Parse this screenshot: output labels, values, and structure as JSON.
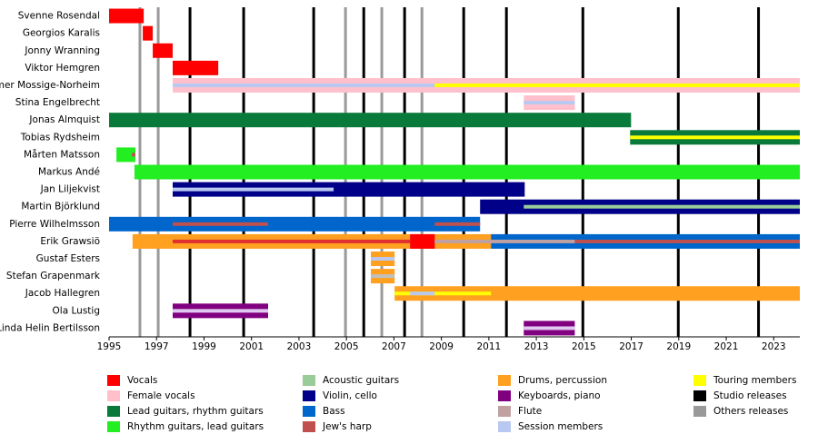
{
  "chart_data": {
    "type": "timeline",
    "xlim": [
      1995,
      2024.1
    ],
    "xticks": [
      1995,
      1997,
      1999,
      2001,
      2003,
      2005,
      2007,
      2009,
      2011,
      2013,
      2015,
      2017,
      2019,
      2021,
      2023
    ],
    "legend": [
      {
        "name": "Vocals",
        "color": "#ff0000"
      },
      {
        "name": "Female vocals",
        "color": "#ffc0cb"
      },
      {
        "name": "Lead guitars, rhythm guitars",
        "color": "#0a7a3a"
      },
      {
        "name": "Rhythm guitars, lead guitars",
        "color": "#22ee22"
      },
      {
        "name": "Acoustic guitars",
        "color": "#99cc99"
      },
      {
        "name": "Violin, cello",
        "color": "#000088"
      },
      {
        "name": "Bass",
        "color": "#0066cc"
      },
      {
        "name": "Jew's harp",
        "color": "#c0504d"
      },
      {
        "name": "Drums, percussion",
        "color": "#ffa020"
      },
      {
        "name": "Keyboards, piano",
        "color": "#800080"
      },
      {
        "name": "Flute",
        "color": "#c0a0a0"
      },
      {
        "name": "Session members",
        "color": "#b8c8f0"
      },
      {
        "name": "Touring members",
        "color": "#ffff00"
      },
      {
        "name": "Studio releases",
        "color": "#000000"
      },
      {
        "name": "Others releases",
        "color": "#999999"
      }
    ],
    "releases": [
      {
        "color": "#000000",
        "values": [
          1998.41,
          2000.67,
          2003.62,
          2005.73,
          2007.45,
          2009.94,
          2011.74,
          2014.96,
          2018.98,
          2022.36
        ]
      },
      {
        "color": "#999999",
        "values": [
          1996.3,
          1997.07,
          2004.96,
          2006.49,
          2008.18
        ]
      }
    ],
    "members": [
      {
        "name": "Svenne Rosendal",
        "bars": [
          {
            "start": 1995.0,
            "end": 1996.46,
            "color": "#ff0000",
            "size": "full"
          }
        ]
      },
      {
        "name": "Georgios Karalis",
        "bars": [
          {
            "start": 1996.42,
            "end": 1996.84,
            "color": "#ff0000",
            "size": "full"
          }
        ]
      },
      {
        "name": "Jonny Wranning",
        "bars": [
          {
            "start": 1996.84,
            "end": 1997.68,
            "color": "#ff0000",
            "size": "full"
          }
        ]
      },
      {
        "name": "Viktor Hemgren",
        "bars": [
          {
            "start": 1997.68,
            "end": 1999.6,
            "color": "#ff0000",
            "size": "full"
          }
        ]
      },
      {
        "name": "Ymer Mossige-Norheim",
        "bars": [
          {
            "start": 1997.68,
            "end": 2024.1,
            "color": "#ffc0cb",
            "size": "full"
          },
          {
            "start": 1997.68,
            "end": 2008.72,
            "color": "#b8c8f0",
            "size": "thin"
          },
          {
            "start": 2008.72,
            "end": 2024.1,
            "color": "#ffff00",
            "size": "thin"
          }
        ]
      },
      {
        "name": "Stina Engelbrecht",
        "bars": [
          {
            "start": 2012.47,
            "end": 2014.62,
            "color": "#ffc0cb",
            "size": "full"
          },
          {
            "start": 2012.47,
            "end": 2014.62,
            "color": "#b8c8f0",
            "size": "thin"
          }
        ]
      },
      {
        "name": "Jonas Almquist",
        "bars": [
          {
            "start": 1995.0,
            "end": 2016.99,
            "color": "#0a7a3a",
            "size": "full"
          }
        ]
      },
      {
        "name": "Tobias Rydsheim",
        "bars": [
          {
            "start": 2016.95,
            "end": 2024.1,
            "color": "#0a7a3a",
            "size": "full"
          },
          {
            "start": 2016.95,
            "end": 2024.1,
            "color": "#ffff00",
            "size": "thin"
          }
        ]
      },
      {
        "name": "Mårten Matsson",
        "bars": [
          {
            "start": 1995.31,
            "end": 1996.11,
            "color": "#22ee22",
            "size": "full"
          },
          {
            "start": 1995.96,
            "end": 1996.11,
            "color": "#c0504d",
            "size": "thin"
          }
        ]
      },
      {
        "name": "Markus Andé",
        "bars": [
          {
            "start": 1996.07,
            "end": 2024.1,
            "color": "#22ee22",
            "size": "full"
          }
        ]
      },
      {
        "name": "Jan Liljekvist",
        "bars": [
          {
            "start": 1997.68,
            "end": 2012.51,
            "color": "#000088",
            "size": "full"
          },
          {
            "start": 1997.68,
            "end": 2004.46,
            "color": "#b8c8f0",
            "size": "thin"
          }
        ]
      },
      {
        "name": "Martin Björklund",
        "bars": [
          {
            "start": 2010.63,
            "end": 2024.1,
            "color": "#000088",
            "size": "full"
          },
          {
            "start": 2012.47,
            "end": 2024.1,
            "color": "#99cc99",
            "size": "thin"
          }
        ]
      },
      {
        "name": "Pierre Wilhelmsson",
        "bars": [
          {
            "start": 1995.0,
            "end": 2010.63,
            "color": "#0066cc",
            "size": "full"
          },
          {
            "start": 1997.68,
            "end": 2001.7,
            "color": "#c0504d",
            "size": "thin"
          },
          {
            "start": 2008.72,
            "end": 2010.63,
            "color": "#c0504d",
            "size": "thin"
          }
        ]
      },
      {
        "name": "Erik Grawsiö",
        "bars": [
          {
            "start": 1995.99,
            "end": 2011.09,
            "color": "#ffa020",
            "size": "full"
          },
          {
            "start": 2011.09,
            "end": 2024.1,
            "color": "#0066cc",
            "size": "full"
          },
          {
            "start": 2007.68,
            "end": 2008.72,
            "color": "#ff0000",
            "size": "full"
          },
          {
            "start": 1997.68,
            "end": 2007.68,
            "color": "#e03030",
            "size": "thin"
          },
          {
            "start": 2008.72,
            "end": 2014.62,
            "color": "#c0a0a0",
            "size": "thin"
          },
          {
            "start": 2014.62,
            "end": 2024.1,
            "color": "#c0504d",
            "size": "thin"
          }
        ]
      },
      {
        "name": "Gustaf Esters",
        "bars": [
          {
            "start": 2006.03,
            "end": 2007.03,
            "color": "#ffa020",
            "size": "full"
          },
          {
            "start": 2006.03,
            "end": 2007.03,
            "color": "#b8c8f0",
            "size": "thin"
          }
        ]
      },
      {
        "name": "Stefan Grapenmark",
        "bars": [
          {
            "start": 2006.03,
            "end": 2007.03,
            "color": "#ffa020",
            "size": "full"
          },
          {
            "start": 2006.03,
            "end": 2007.03,
            "color": "#c0c0c0",
            "size": "thin"
          }
        ]
      },
      {
        "name": "Jacob Hallegren",
        "bars": [
          {
            "start": 2007.03,
            "end": 2024.1,
            "color": "#ffa020",
            "size": "full"
          },
          {
            "start": 2007.03,
            "end": 2011.09,
            "color": "#ffff00",
            "size": "thin"
          },
          {
            "start": 2007.68,
            "end": 2008.72,
            "color": "#b8c8f0",
            "size": "thin"
          }
        ]
      },
      {
        "name": "Ola Lustig",
        "bars": [
          {
            "start": 1997.68,
            "end": 2001.7,
            "color": "#800080",
            "size": "full"
          },
          {
            "start": 1997.68,
            "end": 2001.7,
            "color": "#e0c8f0",
            "size": "thin"
          }
        ]
      },
      {
        "name": "Linda Helin Bertilsson",
        "bars": [
          {
            "start": 2012.47,
            "end": 2014.62,
            "color": "#800080",
            "size": "full"
          },
          {
            "start": 2012.47,
            "end": 2014.62,
            "color": "#e0c8f0",
            "size": "thin"
          }
        ]
      }
    ]
  }
}
